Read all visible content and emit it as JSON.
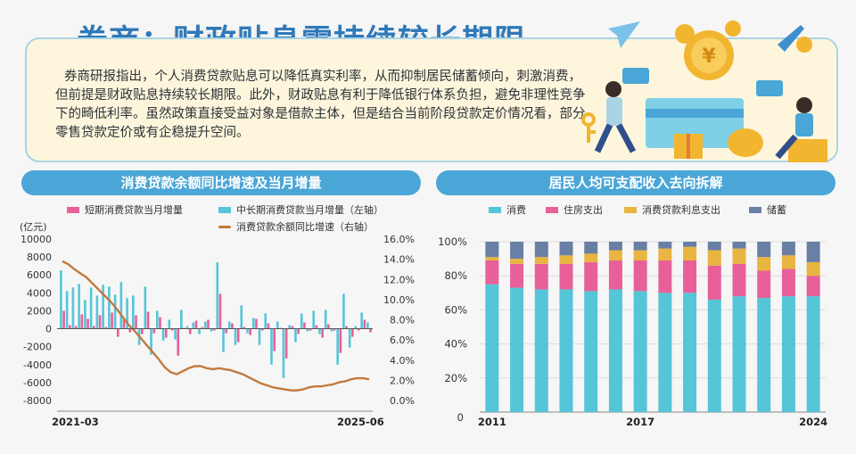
{
  "header": {
    "title": "券商：财政贴息需持续较长期限",
    "paragraph_lines": [
      "券商研报指出，个人消费贷款贴息可以降低真实利率，从而抑制居民储蓄倾向，刺激消费，",
      "但前提是财政贴息持续较长期限。此外，财政贴息有利于降低银行体系负担，避免非理性竞争",
      "下的畸低利率。虽然政策直接受益对象是借款主体，但是结合当前阶段贷款定价情况看，部分",
      "零售贷款定价或有企稳提升空间。"
    ]
  },
  "colors": {
    "pink": "#e8609a",
    "cyan": "#55c5d8",
    "brown": "#c27a3c",
    "yellow": "#e7b540",
    "slate": "#6a7fa5",
    "blue_bar": "#4aa6d6"
  },
  "left_chart": {
    "panel_title": "消费贷款余额同比增速及当月增量",
    "unit_label": "(亿元)",
    "legend": {
      "short": "短期消费贷款当月增量",
      "long": "中长期消费贷款当月增量（左轴）",
      "growth": "消费贷款余额同比增速（右轴）"
    },
    "x_start_label": "2021-03",
    "x_end_label": "2025-06",
    "left_ticks": [
      "10000",
      "8000",
      "6000",
      "4000",
      "2000",
      "0",
      "-2000",
      "-4000",
      "-6000",
      "-8000"
    ],
    "right_ticks": [
      "16.0%",
      "14.0%",
      "12.0%",
      "10.0%",
      "8.0%",
      "6.0%",
      "4.0%",
      "2.0%",
      "0.0%"
    ]
  },
  "right_chart": {
    "panel_title": "居民人均可支配收入去向拆解",
    "legend": {
      "consume": "消费",
      "housing": "住房支出",
      "interest": "消费贷款利息支出",
      "saving": "储蓄"
    },
    "y_ticks": [
      "100%",
      "80%",
      "60%",
      "40%",
      "20%"
    ],
    "zero_label": "0",
    "x_labels": [
      "2011",
      "2017",
      "2024"
    ]
  },
  "chart_data": [
    {
      "type": "bar",
      "title": "消费贷款余额同比增速及当月增量",
      "period": [
        "2021-03",
        "2025-06"
      ],
      "ylabel": "亿元",
      "ylim": [
        -8000,
        10000
      ],
      "y2lim": [
        0,
        16
      ],
      "series": [
        {
          "name": "短期消费贷款当月增量",
          "values": [
            2000,
            400,
            300,
            1600,
            1100,
            300,
            1500,
            200,
            1800,
            -900,
            1000,
            -400,
            1500,
            -600,
            1900,
            -500,
            1300,
            -1000,
            -200,
            -3000,
            100,
            -600,
            900,
            200,
            1000,
            -200,
            3900,
            -500,
            600,
            -1500,
            200,
            -700,
            1100,
            -200,
            600,
            -2500,
            100,
            -3300,
            300,
            -600,
            700,
            -200,
            400,
            -1000,
            500,
            -200,
            -2700,
            300,
            -900,
            -200,
            1000,
            -400
          ]
        },
        {
          "name": "中长期消费贷款当月增量（左轴）",
          "values": [
            6500,
            4200,
            4600,
            5000,
            3200,
            4600,
            3700,
            4900,
            4700,
            3800,
            5200,
            3400,
            3700,
            -1800,
            4700,
            -2900,
            2000,
            -1300,
            1000,
            -1200,
            2100,
            300,
            700,
            -600,
            800,
            -300,
            7400,
            -2600,
            800,
            -1800,
            2600,
            -500,
            1200,
            -1800,
            1700,
            -4000,
            800,
            -5500,
            400,
            -1500,
            1700,
            -300,
            2000,
            -600,
            2100,
            -300,
            -4000,
            3900,
            -2100,
            300,
            1800,
            700
          ]
        },
        {
          "name": "消费贷款余额同比增速（右轴）",
          "values": [
            13.8,
            13.5,
            13.0,
            12.6,
            12.2,
            11.6,
            11.0,
            10.4,
            9.8,
            9.1,
            8.3,
            7.5,
            6.9,
            6.2,
            5.5,
            4.8,
            4.1,
            3.3,
            2.8,
            2.6,
            2.9,
            3.2,
            3.4,
            3.4,
            3.2,
            3.1,
            3.2,
            3.1,
            3.0,
            2.8,
            2.6,
            2.3,
            2.0,
            1.7,
            1.5,
            1.3,
            1.2,
            1.1,
            1.0,
            1.0,
            1.1,
            1.3,
            1.4,
            1.4,
            1.5,
            1.6,
            1.8,
            1.9,
            2.1,
            2.2,
            2.2,
            2.1
          ]
        }
      ]
    },
    {
      "type": "bar",
      "title": "居民人均可支配收入去向拆解",
      "categories": [
        "2011",
        "2012",
        "2013",
        "2014",
        "2015",
        "2016",
        "2017",
        "2018",
        "2019",
        "2020",
        "2021",
        "2022",
        "2023",
        "2024"
      ],
      "ylim": [
        0,
        100
      ],
      "series": [
        {
          "name": "消费",
          "values": [
            75,
            73,
            72,
            72,
            71,
            72,
            71,
            70,
            70,
            66,
            68,
            67,
            68,
            68
          ]
        },
        {
          "name": "住房支出",
          "values": [
            14,
            14,
            15,
            15,
            17,
            17,
            18,
            19,
            19,
            20,
            19,
            16,
            16,
            12
          ]
        },
        {
          "name": "消费贷款利息支出",
          "values": [
            2,
            3,
            4,
            5,
            5,
            6,
            6,
            7,
            8,
            9,
            9,
            8,
            8,
            8
          ]
        },
        {
          "name": "储蓄",
          "values": [
            9,
            10,
            9,
            8,
            7,
            5,
            5,
            4,
            3,
            5,
            4,
            9,
            8,
            12
          ]
        }
      ]
    }
  ]
}
